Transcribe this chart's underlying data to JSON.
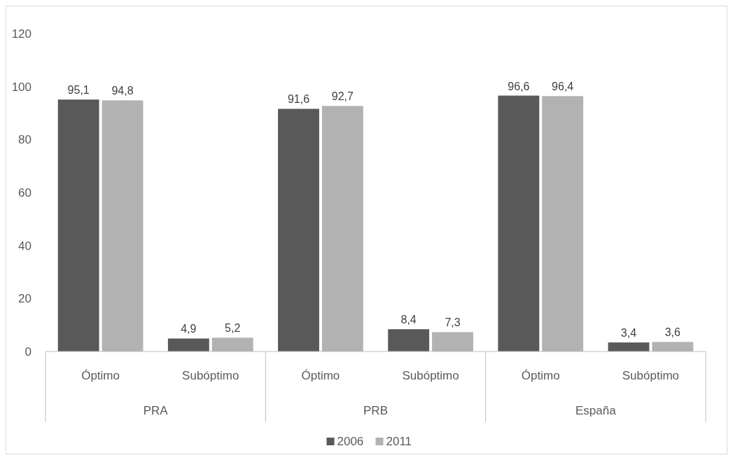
{
  "chart_data": {
    "type": "bar",
    "categories": [
      "Óptimo",
      "Subóptimo",
      "Óptimo",
      "Subóptimo",
      "Óptimo",
      "Subóptimo"
    ],
    "annotations": [
      "PRA",
      "PRB",
      "España"
    ],
    "series": [
      {
        "name": "2006",
        "color": "#595959",
        "values": [
          95.1,
          4.9,
          91.6,
          8.4,
          96.6,
          3.4
        ],
        "value_labels": [
          "95,1",
          "4,9",
          "91,6",
          "8,4",
          "96,6",
          "3,4"
        ]
      },
      {
        "name": "2011",
        "color": "#b2b2b2",
        "values": [
          94.8,
          5.2,
          92.7,
          7.3,
          96.4,
          3.6
        ],
        "value_labels": [
          "94,8",
          "5,2",
          "92,7",
          "7,3",
          "96,4",
          "3,6"
        ]
      }
    ],
    "ylim": [
      0,
      120
    ],
    "yticks": [
      0,
      20,
      40,
      60,
      80,
      100,
      120
    ],
    "grid": false,
    "legend": "bottom"
  }
}
